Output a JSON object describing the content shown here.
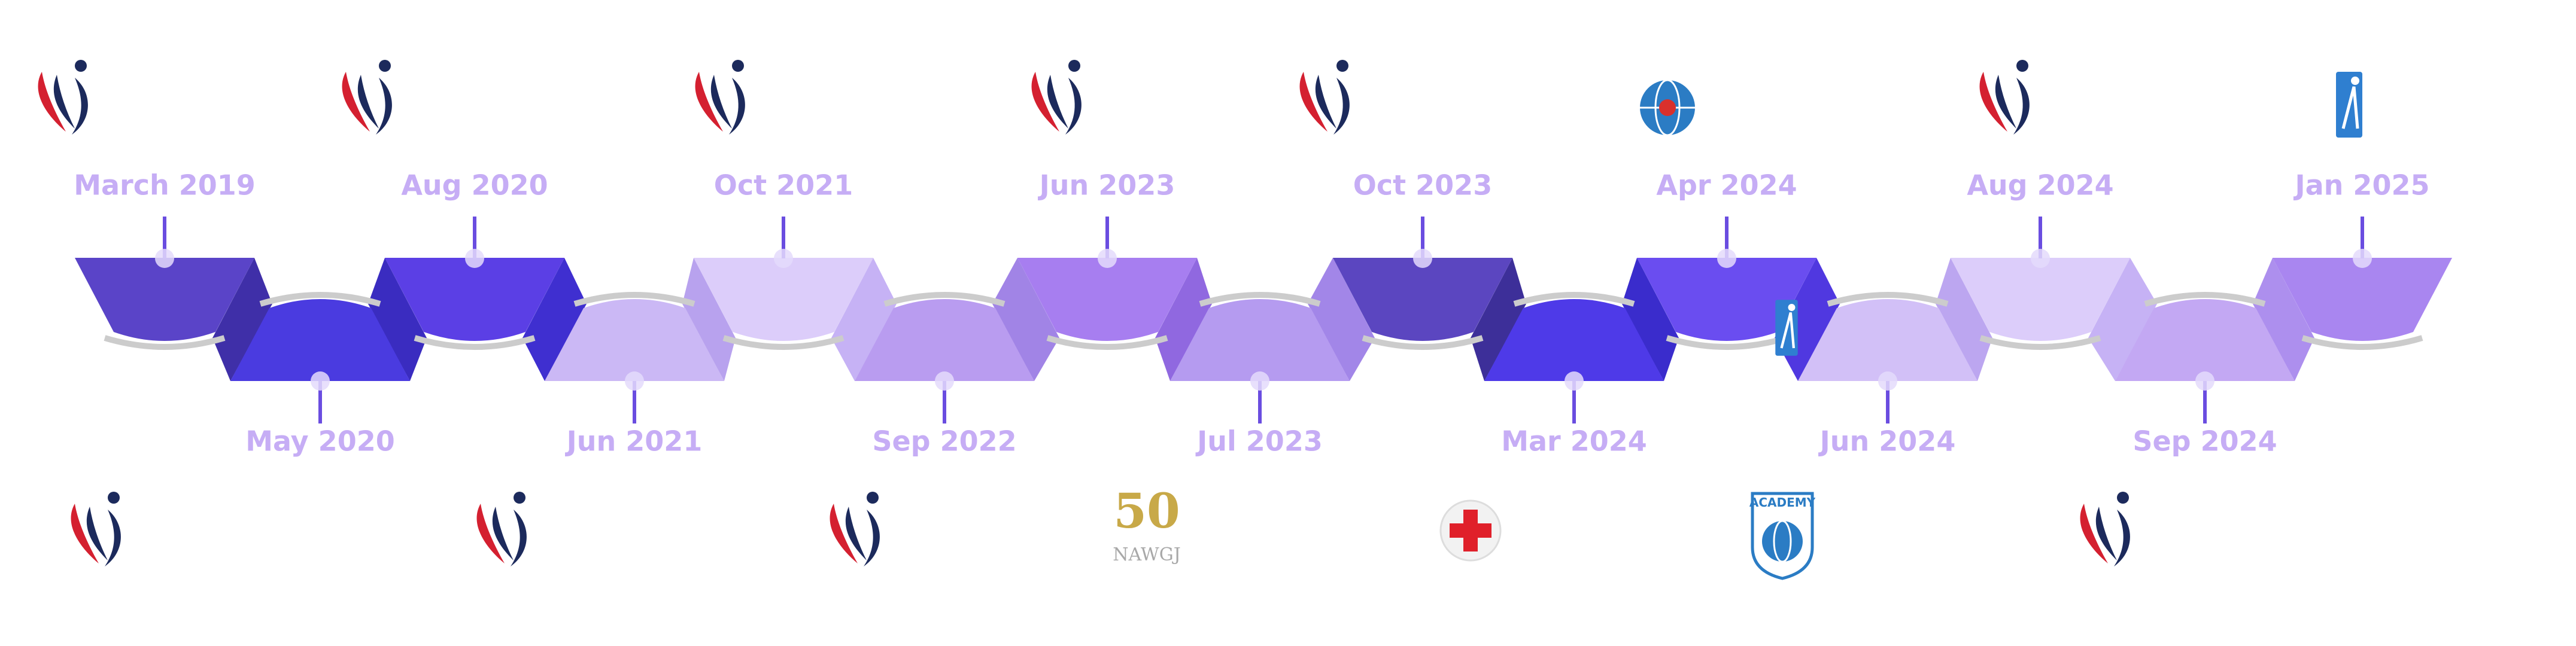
{
  "timeline": {
    "top": [
      "March 2019",
      "Aug 2020",
      "Oct 2021",
      "Jun 2023",
      "Oct 2023",
      "Apr 2024",
      "Aug 2024",
      "Jan 2025"
    ],
    "bottom": [
      "May 2020",
      "Jun 2021",
      "Sep 2022",
      "Jul 2023",
      "Mar 2024",
      "Jun 2024",
      "Sep 2024"
    ]
  },
  "logos": {
    "nawgj_number": "50",
    "nawgj_name": "NAWGJ",
    "academy": "ACADEMY"
  }
}
